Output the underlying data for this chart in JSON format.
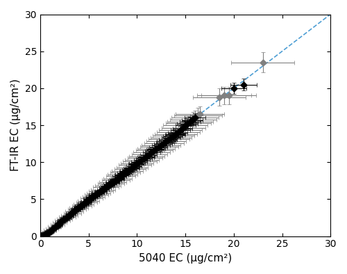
{
  "title": "",
  "xlabel": "5040 EC (μg/cm²)",
  "ylabel": "FT-IR EC (μg/cm²)",
  "xlim": [
    0,
    30
  ],
  "ylim": [
    0,
    30
  ],
  "xticks": [
    0,
    5,
    10,
    15,
    20,
    25,
    30
  ],
  "yticks": [
    0,
    5,
    10,
    15,
    20,
    25,
    30
  ],
  "line_color": "#4d9ed4",
  "line_style": "--",
  "black_points": [
    [
      0.05,
      0.0
    ],
    [
      0.1,
      0.05
    ],
    [
      0.15,
      0.05
    ],
    [
      0.2,
      0.1
    ],
    [
      0.3,
      0.1
    ],
    [
      0.4,
      0.15
    ],
    [
      0.5,
      0.2
    ],
    [
      0.6,
      0.3
    ],
    [
      0.7,
      0.3
    ],
    [
      0.8,
      0.4
    ],
    [
      0.9,
      0.5
    ],
    [
      1.0,
      0.6
    ],
    [
      1.1,
      0.7
    ],
    [
      1.2,
      0.8
    ],
    [
      1.3,
      1.0
    ],
    [
      1.5,
      1.2
    ],
    [
      1.6,
      1.3
    ],
    [
      1.7,
      1.4
    ],
    [
      1.8,
      1.5
    ],
    [
      1.9,
      1.6
    ],
    [
      2.0,
      1.8
    ],
    [
      2.1,
      1.9
    ],
    [
      2.2,
      2.0
    ],
    [
      2.3,
      2.1
    ],
    [
      2.4,
      2.2
    ],
    [
      2.5,
      2.3
    ],
    [
      2.6,
      2.4
    ],
    [
      2.7,
      2.5
    ],
    [
      2.8,
      2.6
    ],
    [
      2.9,
      2.7
    ],
    [
      3.0,
      2.8
    ],
    [
      3.1,
      3.0
    ],
    [
      3.2,
      3.1
    ],
    [
      3.3,
      3.2
    ],
    [
      3.5,
      3.4
    ],
    [
      3.6,
      3.5
    ],
    [
      3.7,
      3.6
    ],
    [
      3.8,
      3.7
    ],
    [
      3.9,
      3.8
    ],
    [
      4.0,
      3.9
    ],
    [
      4.1,
      4.0
    ],
    [
      4.2,
      4.1
    ],
    [
      4.3,
      4.2
    ],
    [
      4.4,
      4.3
    ],
    [
      4.5,
      4.4
    ],
    [
      4.6,
      4.5
    ],
    [
      4.7,
      4.6
    ],
    [
      4.8,
      4.7
    ],
    [
      5.0,
      4.9
    ],
    [
      5.1,
      5.0
    ],
    [
      5.2,
      5.1
    ],
    [
      5.3,
      5.2
    ],
    [
      5.4,
      5.3
    ],
    [
      5.5,
      5.4
    ],
    [
      5.6,
      5.5
    ],
    [
      5.7,
      5.6
    ],
    [
      5.8,
      5.7
    ],
    [
      5.9,
      5.8
    ],
    [
      6.0,
      5.9
    ],
    [
      6.2,
      6.0
    ],
    [
      6.3,
      6.1
    ],
    [
      6.5,
      6.3
    ],
    [
      6.7,
      6.5
    ],
    [
      6.9,
      6.7
    ],
    [
      7.0,
      6.8
    ],
    [
      7.2,
      7.0
    ],
    [
      7.4,
      7.2
    ],
    [
      7.5,
      7.3
    ],
    [
      7.7,
      7.5
    ],
    [
      7.9,
      7.7
    ],
    [
      8.0,
      7.8
    ],
    [
      8.2,
      8.0
    ],
    [
      8.4,
      8.2
    ],
    [
      8.5,
      8.3
    ],
    [
      8.7,
      8.5
    ],
    [
      8.9,
      8.7
    ],
    [
      9.0,
      8.8
    ],
    [
      9.2,
      9.0
    ],
    [
      9.4,
      9.2
    ],
    [
      9.5,
      9.3
    ],
    [
      9.7,
      9.5
    ],
    [
      9.9,
      9.7
    ],
    [
      10.0,
      9.8
    ],
    [
      10.2,
      10.0
    ],
    [
      10.5,
      10.3
    ],
    [
      10.7,
      10.5
    ],
    [
      10.9,
      10.7
    ],
    [
      11.0,
      10.8
    ],
    [
      11.2,
      11.0
    ],
    [
      11.5,
      11.3
    ],
    [
      11.7,
      11.5
    ],
    [
      11.9,
      11.7
    ],
    [
      12.0,
      11.8
    ],
    [
      12.2,
      12.0
    ],
    [
      12.5,
      12.3
    ],
    [
      12.7,
      12.5
    ],
    [
      12.9,
      12.7
    ],
    [
      13.0,
      12.8
    ],
    [
      13.2,
      13.0
    ],
    [
      13.5,
      13.3
    ],
    [
      13.7,
      13.5
    ],
    [
      13.9,
      13.7
    ],
    [
      14.0,
      13.8
    ],
    [
      14.2,
      14.0
    ],
    [
      14.5,
      14.3
    ],
    [
      14.7,
      14.5
    ],
    [
      15.0,
      15.0
    ],
    [
      15.2,
      15.2
    ],
    [
      15.5,
      15.5
    ],
    [
      15.7,
      15.7
    ],
    [
      16.0,
      16.0
    ],
    [
      20.0,
      20.0
    ],
    [
      21.0,
      20.5
    ]
  ],
  "black_xerr": 0.4,
  "black_yerr": 0.3,
  "gray_points": [
    [
      0.1,
      0.1
    ],
    [
      0.2,
      0.15
    ],
    [
      0.3,
      0.2
    ],
    [
      0.5,
      0.3
    ],
    [
      0.7,
      0.5
    ],
    [
      1.0,
      0.8
    ],
    [
      1.2,
      1.0
    ],
    [
      1.5,
      1.3
    ],
    [
      1.8,
      1.6
    ],
    [
      2.0,
      1.8
    ],
    [
      2.3,
      2.1
    ],
    [
      2.5,
      2.3
    ],
    [
      2.8,
      2.6
    ],
    [
      3.0,
      2.8
    ],
    [
      3.3,
      3.1
    ],
    [
      3.5,
      3.3
    ],
    [
      3.8,
      3.6
    ],
    [
      4.0,
      3.8
    ],
    [
      4.3,
      4.1
    ],
    [
      4.5,
      4.3
    ],
    [
      4.8,
      4.6
    ],
    [
      5.0,
      4.8
    ],
    [
      5.3,
      5.1
    ],
    [
      5.5,
      5.3
    ],
    [
      5.8,
      5.6
    ],
    [
      6.0,
      5.8
    ],
    [
      6.3,
      6.1
    ],
    [
      6.5,
      6.3
    ],
    [
      6.8,
      6.6
    ],
    [
      7.0,
      6.8
    ],
    [
      7.3,
      7.1
    ],
    [
      7.5,
      7.3
    ],
    [
      7.8,
      7.6
    ],
    [
      8.0,
      7.8
    ],
    [
      8.3,
      8.1
    ],
    [
      8.5,
      8.3
    ],
    [
      8.8,
      8.6
    ],
    [
      9.0,
      8.8
    ],
    [
      9.3,
      9.1
    ],
    [
      9.5,
      9.3
    ],
    [
      9.8,
      9.6
    ],
    [
      10.0,
      9.8
    ],
    [
      10.3,
      10.1
    ],
    [
      10.5,
      10.3
    ],
    [
      10.8,
      10.6
    ],
    [
      11.0,
      10.8
    ],
    [
      11.3,
      11.1
    ],
    [
      11.5,
      11.3
    ],
    [
      11.8,
      11.6
    ],
    [
      12.0,
      11.8
    ],
    [
      12.3,
      12.1
    ],
    [
      12.5,
      12.3
    ],
    [
      12.8,
      12.6
    ],
    [
      13.0,
      12.8
    ],
    [
      13.3,
      13.1
    ],
    [
      13.5,
      13.3
    ],
    [
      13.8,
      13.6
    ],
    [
      14.0,
      13.8
    ],
    [
      14.3,
      14.1
    ],
    [
      14.5,
      14.3
    ],
    [
      14.8,
      14.6
    ],
    [
      15.0,
      15.0
    ],
    [
      15.3,
      15.3
    ],
    [
      15.5,
      15.5
    ],
    [
      15.8,
      15.8
    ],
    [
      16.0,
      16.0
    ],
    [
      16.3,
      16.3
    ],
    [
      16.5,
      16.5
    ],
    [
      18.5,
      18.8
    ],
    [
      19.0,
      19.0
    ],
    [
      19.5,
      19.0
    ],
    [
      23.0,
      23.5
    ]
  ],
  "gray_xerr": 1.5,
  "gray_yerr": 0.3,
  "marker_size": 5,
  "capsize": 2,
  "elinewidth": 0.8,
  "marker": "D"
}
